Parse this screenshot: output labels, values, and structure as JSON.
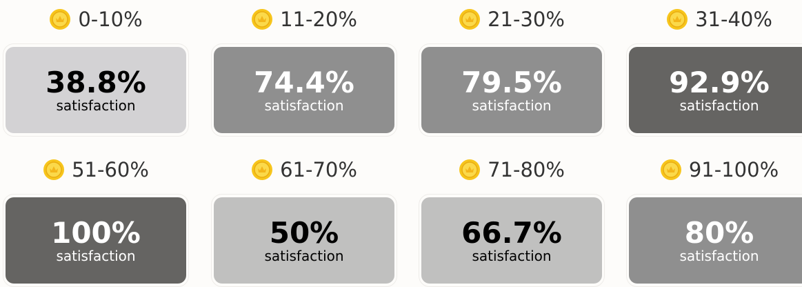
{
  "cards": [
    {
      "range": "0-10%",
      "value": "38.8%",
      "caption": "satisfaction",
      "color": "#d3d2d4",
      "text_color": "#000000"
    },
    {
      "range": "11-20%",
      "value": "74.4%",
      "caption": "satisfaction",
      "color": "#8f8f8f",
      "text_color": "#ffffff"
    },
    {
      "range": "21-30%",
      "value": "79.5%",
      "caption": "satisfaction",
      "color": "#8f8f8f",
      "text_color": "#ffffff"
    },
    {
      "range": "31-40%",
      "value": "92.9%",
      "caption": "satisfaction",
      "color": "#656462",
      "text_color": "#ffffff"
    },
    {
      "range": "51-60%",
      "value": "100%",
      "caption": "satisfaction",
      "color": "#656462",
      "text_color": "#ffffff"
    },
    {
      "range": "61-70%",
      "value": "50%",
      "caption": "satisfaction",
      "color": "#c0c0bf",
      "text_color": "#000000"
    },
    {
      "range": "71-80%",
      "value": "66.7%",
      "caption": "satisfaction",
      "color": "#c0c0bf",
      "text_color": "#000000"
    },
    {
      "range": "91-100%",
      "value": "80%",
      "caption": "satisfaction",
      "color": "#8f8f8f",
      "text_color": "#ffffff"
    }
  ]
}
